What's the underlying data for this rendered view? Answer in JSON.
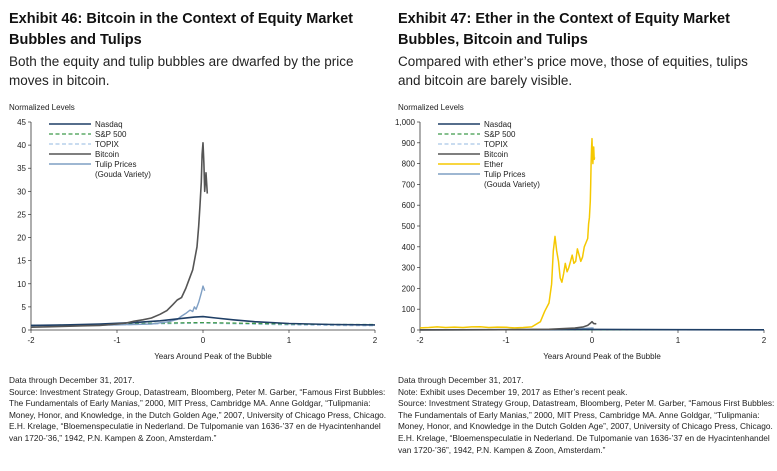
{
  "colors": {
    "nasdaq": "#1f3f66",
    "sp500": "#3f9a4a",
    "topix": "#a9c6e8",
    "bitcoin": "#555555",
    "ether": "#f5c800",
    "tulip": "#7f9fc4"
  },
  "panels": [
    {
      "title": "Exhibit 46: Bitcoin in the Context of Equity Market Bubbles and Tulips",
      "subtitle": "Both the equity and tulip bubbles are dwarfed by the price moves in bitcoin.",
      "notes": {
        "data_through": "Data through December 31, 2017.",
        "extra_note": "",
        "source": "Source: Investment Strategy Group, Datastream, Bloomberg, Peter M. Garber, “Famous First Bubbles: The Fundamentals of Early Manias,” 2000, MIT Press, Cambridge MA. Anne Goldgar, “Tulipmania: Money, Honor, and Knowledge, in the Dutch Golden Age,” 2007, University of Chicago Press, Chicago. E.H. Krelage, “Bloemenspeculatie in Nederland. De Tulpomanie van 1636-’37 en de Hyacintenhandel van 1720-’36,” 1942, P.N. Kampen & Zoon, Amsterdam.”"
      }
    },
    {
      "title": "Exhibit 47: Ether in the Context of Equity Market Bubbles, Bitcoin and Tulips",
      "subtitle": "Compared with ether’s price move, those of equities, tulips and bitcoin are barely visible.",
      "notes": {
        "data_through": "Data through December 31, 2017.",
        "extra_note": "Note: Exhibit uses December 19, 2017 as Ether’s recent peak.",
        "source": "Source: Investment Strategy Group, Datastream, Bloomberg, Peter M. Garber, “Famous First Bubbles: The Fundamentals of Early Manias,” 2000, MIT Press, Cambridge MA.  Anne Goldgar, “Tulipmania: Money, Honor, and Knowledge in the Dutch Golden Age”, 2007, University of Chicago Press, Chicago.  E.H. Krelage,  “Bloemenspeculatie in Nederland. De Tulpomanie van 1636-’37 en de Hyacintenhandel van 1720-’36”, 1942, P.N. Kampen & Zoon, Amsterdam.”"
      }
    }
  ],
  "chart_data": [
    {
      "type": "line",
      "ylabel": "Normalized Levels",
      "xlabel": "Years Around Peak of the Bubble",
      "xlim": [
        -2,
        2
      ],
      "ylim": [
        0,
        45
      ],
      "xticks": [
        -2,
        -1,
        0,
        1,
        2
      ],
      "xtick_labels": [
        "-2",
        "-1",
        "0",
        "1",
        "2"
      ],
      "yticks": [
        0,
        5,
        10,
        15,
        20,
        25,
        30,
        35,
        40,
        45
      ],
      "ytick_labels": [
        "0",
        "5",
        "10",
        "15",
        "20",
        "25",
        "30",
        "35",
        "40",
        "45"
      ],
      "legend_position": "top-left",
      "series": [
        {
          "name": "Nasdaq",
          "key": "nasdaq",
          "dash": "solid",
          "width": 1.6,
          "points": [
            [
              -2,
              1.0
            ],
            [
              -1.6,
              1.1
            ],
            [
              -1.2,
              1.3
            ],
            [
              -0.8,
              1.6
            ],
            [
              -0.5,
              2.0
            ],
            [
              -0.25,
              2.5
            ],
            [
              -0.1,
              2.8
            ],
            [
              0,
              2.9
            ],
            [
              0.15,
              2.6
            ],
            [
              0.35,
              2.2
            ],
            [
              0.6,
              1.8
            ],
            [
              1.0,
              1.4
            ],
            [
              1.5,
              1.2
            ],
            [
              2,
              1.1
            ]
          ]
        },
        {
          "name": "S&P 500",
          "key": "sp500",
          "dash": "dashed",
          "width": 1.3,
          "points": [
            [
              -2,
              1.0
            ],
            [
              -1.5,
              1.1
            ],
            [
              -1.0,
              1.3
            ],
            [
              -0.5,
              1.5
            ],
            [
              0,
              1.6
            ],
            [
              0.5,
              1.45
            ],
            [
              1.0,
              1.3
            ],
            [
              1.5,
              1.2
            ],
            [
              2,
              1.2
            ]
          ]
        },
        {
          "name": "TOPIX",
          "key": "topix",
          "dash": "dashed",
          "width": 1.3,
          "points": [
            [
              -2,
              0.9
            ],
            [
              -1.5,
              1.0
            ],
            [
              -1.0,
              1.1
            ],
            [
              -0.5,
              1.35
            ],
            [
              0,
              1.5
            ],
            [
              0.5,
              1.3
            ],
            [
              1.0,
              1.1
            ],
            [
              1.5,
              1.0
            ],
            [
              2,
              0.9
            ]
          ]
        },
        {
          "name": "Bitcoin",
          "key": "bitcoin",
          "dash": "solid",
          "width": 1.6,
          "points": [
            [
              -2,
              0.6
            ],
            [
              -1.8,
              0.7
            ],
            [
              -1.6,
              0.8
            ],
            [
              -1.4,
              0.9
            ],
            [
              -1.2,
              1.0
            ],
            [
              -1.0,
              1.3
            ],
            [
              -0.9,
              1.5
            ],
            [
              -0.8,
              1.9
            ],
            [
              -0.7,
              2.2
            ],
            [
              -0.6,
              2.6
            ],
            [
              -0.5,
              3.4
            ],
            [
              -0.42,
              4.2
            ],
            [
              -0.35,
              5.5
            ],
            [
              -0.3,
              6.5
            ],
            [
              -0.25,
              7.0
            ],
            [
              -0.2,
              9.0
            ],
            [
              -0.15,
              11.5
            ],
            [
              -0.12,
              13.0
            ],
            [
              -0.09,
              16.0
            ],
            [
              -0.07,
              18.0
            ],
            [
              -0.05,
              22.5
            ],
            [
              -0.035,
              27.0
            ],
            [
              -0.02,
              32.0
            ],
            [
              -0.01,
              38.0
            ],
            [
              0,
              40.5
            ],
            [
              0.01,
              36.0
            ],
            [
              0.02,
              30.0
            ],
            [
              0.035,
              34.0
            ],
            [
              0.05,
              29.5
            ]
          ]
        },
        {
          "name": "Tulip Prices",
          "name2": "(Gouda Variety)",
          "key": "tulip",
          "dash": "solid",
          "width": 1.4,
          "points": [
            [
              -2,
              1.0
            ],
            [
              -1.5,
              1.0
            ],
            [
              -1.0,
              1.1
            ],
            [
              -0.6,
              1.3
            ],
            [
              -0.4,
              1.8
            ],
            [
              -0.3,
              2.3
            ],
            [
              -0.25,
              3.0
            ],
            [
              -0.2,
              3.6
            ],
            [
              -0.15,
              4.3
            ],
            [
              -0.12,
              4.0
            ],
            [
              -0.1,
              5.0
            ],
            [
              -0.08,
              4.5
            ],
            [
              -0.05,
              6.0
            ],
            [
              -0.02,
              8.0
            ],
            [
              0,
              9.5
            ],
            [
              0.02,
              8.5
            ]
          ]
        }
      ]
    },
    {
      "type": "line",
      "ylabel": "Normalized Levels",
      "xlabel": "Years Around Peak of the Bubble",
      "xlim": [
        -2,
        2
      ],
      "ylim": [
        0,
        1000
      ],
      "xticks": [
        -2,
        -1,
        0,
        1,
        2
      ],
      "xtick_labels": [
        "-2",
        "-1",
        "0",
        "1",
        "2"
      ],
      "yticks": [
        0,
        100,
        200,
        300,
        400,
        500,
        600,
        700,
        800,
        900,
        1000
      ],
      "ytick_labels": [
        "0",
        "100",
        "200",
        "300",
        "400",
        "500",
        "600",
        "700",
        "800",
        "900",
        "1,000"
      ],
      "legend_position": "top-left",
      "series": [
        {
          "name": "Nasdaq",
          "key": "nasdaq",
          "dash": "solid",
          "width": 1.6,
          "points": [
            [
              -2,
              1
            ],
            [
              -1,
              1.3
            ],
            [
              -0.5,
              2
            ],
            [
              0,
              2.9
            ],
            [
              0.5,
              2
            ],
            [
              1,
              1.4
            ],
            [
              2,
              1.1
            ]
          ]
        },
        {
          "name": "S&P 500",
          "key": "sp500",
          "dash": "dashed",
          "width": 1.3,
          "points": [
            [
              -2,
              1
            ],
            [
              -1,
              1.3
            ],
            [
              0,
              1.6
            ],
            [
              1,
              1.3
            ],
            [
              2,
              1.2
            ]
          ]
        },
        {
          "name": "TOPIX",
          "key": "topix",
          "dash": "dashed",
          "width": 1.3,
          "points": [
            [
              -2,
              0.9
            ],
            [
              -1,
              1.1
            ],
            [
              0,
              1.5
            ],
            [
              1,
              1.1
            ],
            [
              2,
              0.9
            ]
          ]
        },
        {
          "name": "Bitcoin",
          "key": "bitcoin",
          "dash": "solid",
          "width": 1.6,
          "points": [
            [
              -2,
              0.6
            ],
            [
              -1,
              1.3
            ],
            [
              -0.5,
              3.4
            ],
            [
              -0.2,
              9
            ],
            [
              -0.1,
              15
            ],
            [
              -0.05,
              22
            ],
            [
              -0.02,
              32
            ],
            [
              0,
              40
            ],
            [
              0.02,
              31
            ],
            [
              0.05,
              30
            ]
          ]
        },
        {
          "name": "Ether",
          "key": "ether",
          "dash": "solid",
          "width": 1.5,
          "points": [
            [
              -2,
              10
            ],
            [
              -1.9,
              12
            ],
            [
              -1.8,
              15
            ],
            [
              -1.7,
              12
            ],
            [
              -1.6,
              14
            ],
            [
              -1.5,
              12
            ],
            [
              -1.4,
              15
            ],
            [
              -1.3,
              16
            ],
            [
              -1.2,
              12
            ],
            [
              -1.1,
              14
            ],
            [
              -1.0,
              13
            ],
            [
              -0.9,
              10
            ],
            [
              -0.8,
              12
            ],
            [
              -0.7,
              15
            ],
            [
              -0.6,
              40
            ],
            [
              -0.55,
              90
            ],
            [
              -0.5,
              130
            ],
            [
              -0.47,
              220
            ],
            [
              -0.45,
              380
            ],
            [
              -0.43,
              450
            ],
            [
              -0.41,
              380
            ],
            [
              -0.39,
              330
            ],
            [
              -0.37,
              250
            ],
            [
              -0.35,
              230
            ],
            [
              -0.33,
              270
            ],
            [
              -0.31,
              320
            ],
            [
              -0.29,
              280
            ],
            [
              -0.27,
              300
            ],
            [
              -0.25,
              330
            ],
            [
              -0.23,
              360
            ],
            [
              -0.21,
              320
            ],
            [
              -0.19,
              330
            ],
            [
              -0.17,
              390
            ],
            [
              -0.15,
              360
            ],
            [
              -0.13,
              330
            ],
            [
              -0.11,
              350
            ],
            [
              -0.09,
              400
            ],
            [
              -0.07,
              420
            ],
            [
              -0.05,
              440
            ],
            [
              -0.04,
              510
            ],
            [
              -0.03,
              540
            ],
            [
              -0.02,
              620
            ],
            [
              -0.015,
              700
            ],
            [
              -0.01,
              800
            ],
            [
              -0.005,
              880
            ],
            [
              0,
              920
            ],
            [
              0.005,
              850
            ],
            [
              0.01,
              800
            ],
            [
              0.015,
              870
            ],
            [
              0.02,
              880
            ],
            [
              0.025,
              820
            ],
            [
              0.03,
              830
            ]
          ]
        },
        {
          "name": "Tulip Prices",
          "name2": "(Gouda Variety)",
          "key": "tulip",
          "dash": "solid",
          "width": 1.4,
          "points": [
            [
              -2,
              1
            ],
            [
              -1,
              1.1
            ],
            [
              -0.5,
              1.5
            ],
            [
              -0.2,
              3.6
            ],
            [
              0,
              9.5
            ],
            [
              0.02,
              8.5
            ]
          ]
        }
      ]
    }
  ]
}
